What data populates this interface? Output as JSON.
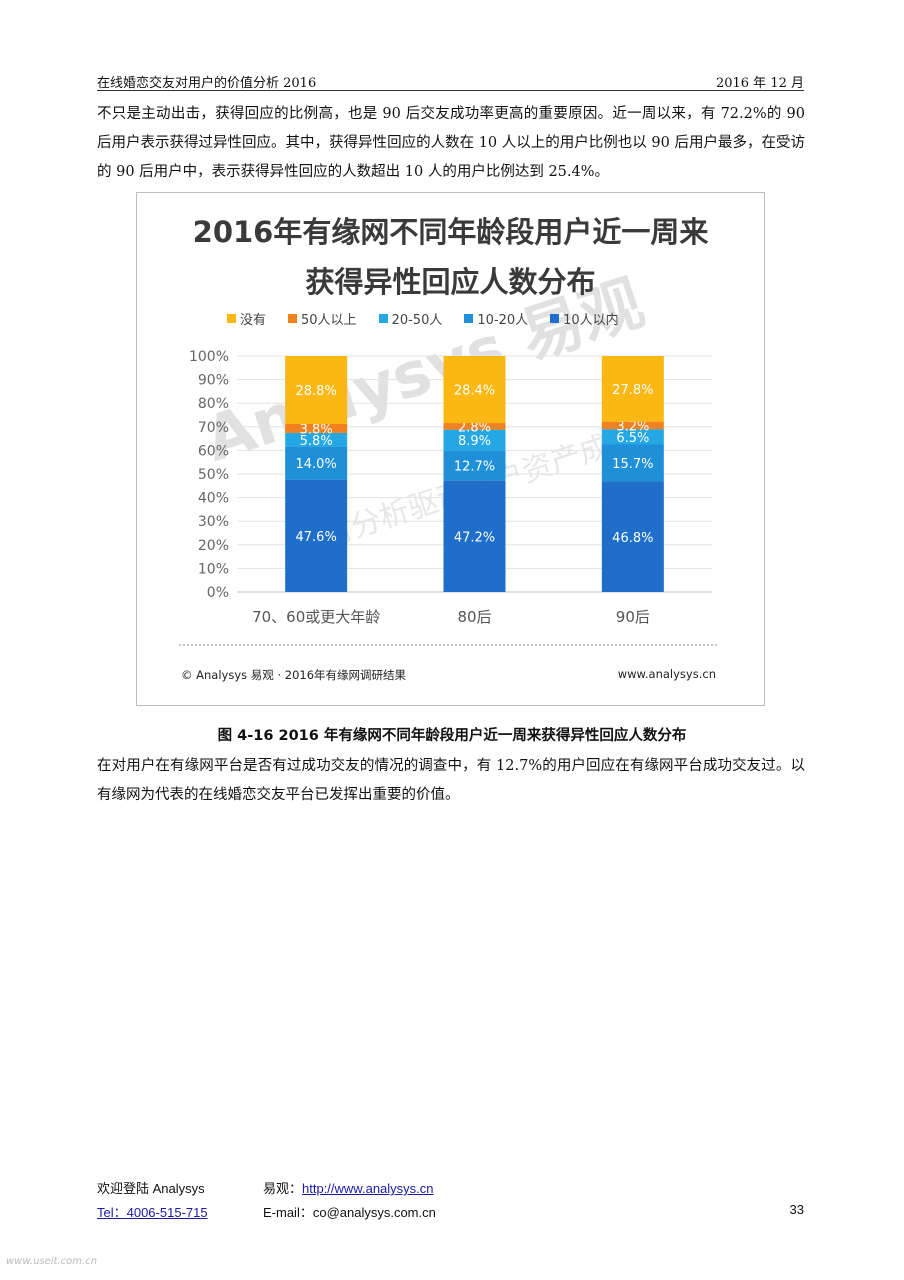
{
  "header": {
    "left": "在线婚恋交友对用户的价值分析 2016",
    "right": "2016 年 12 月"
  },
  "paragraph1": "不只是主动出击，获得回应的比例高，也是 90 后交友成功率更高的重要原因。近一周以来，有 72.2%的 90 后用户表示获得过异性回应。其中，获得异性回应的人数在 10 人以上的用户比例也以 90 后用户最多，在受访的 90 后用户中，表示获得异性回应的人数超出 10 人的用户比例达到 25.4%。",
  "chart_box": {
    "title_line1": "2016年有缘网不同年龄段用户近一周来",
    "title_line2": "获得异性回应人数分布",
    "source": "© Analysys 易观 · 2016年有缘网调研结果",
    "website": "www.analysys.cn",
    "watermark_main": "Analysys 易观",
    "watermark_sub": "实时分析驱动用户资产成长"
  },
  "chart_data": {
    "type": "bar",
    "stacked": true,
    "categories": [
      "70、60或更大年龄",
      "80后",
      "90后"
    ],
    "series": [
      {
        "name": "10人以内",
        "color": "#1f6fca",
        "values": [
          47.6,
          47.2,
          46.8
        ]
      },
      {
        "name": "10-20人",
        "color": "#1f8fd8",
        "values": [
          14.0,
          12.7,
          15.7
        ]
      },
      {
        "name": "20-50人",
        "color": "#25a7e3",
        "values": [
          5.8,
          8.9,
          6.5
        ]
      },
      {
        "name": "50人以上",
        "color": "#f2821f",
        "values": [
          3.8,
          2.8,
          3.2
        ]
      },
      {
        "name": "没有",
        "color": "#fbb712",
        "values": [
          28.8,
          28.4,
          27.8
        ]
      }
    ],
    "legend_order": [
      "没有",
      "50人以上",
      "20-50人",
      "10-20人",
      "10人以内"
    ],
    "y_ticks": [
      "0%",
      "10%",
      "20%",
      "30%",
      "40%",
      "50%",
      "60%",
      "70%",
      "80%",
      "90%",
      "100%"
    ],
    "ylim": [
      0,
      100
    ],
    "grid": true,
    "legend_position": "top"
  },
  "caption": "图 4-16 2016 年有缘网不同年龄段用户近一周来获得异性回应人数分布",
  "paragraph2": "在对用户在有缘网平台是否有过成功交友的情况的调查中，有 12.7%的用户回应在有缘网平台成功交友过。以有缘网为代表的在线婚恋交友平台已发挥出重要的价值。",
  "footer": {
    "welcome": "欢迎登陆 Analysys",
    "yiguan_label": "易观：",
    "yiguan_url": "http://www.analysys.cn",
    "tel": "Tel：4006-515-715",
    "email": "E-mail：co@analysys.com.cn",
    "page_number": "33"
  },
  "corner_watermark": "www.useit.com.cn"
}
